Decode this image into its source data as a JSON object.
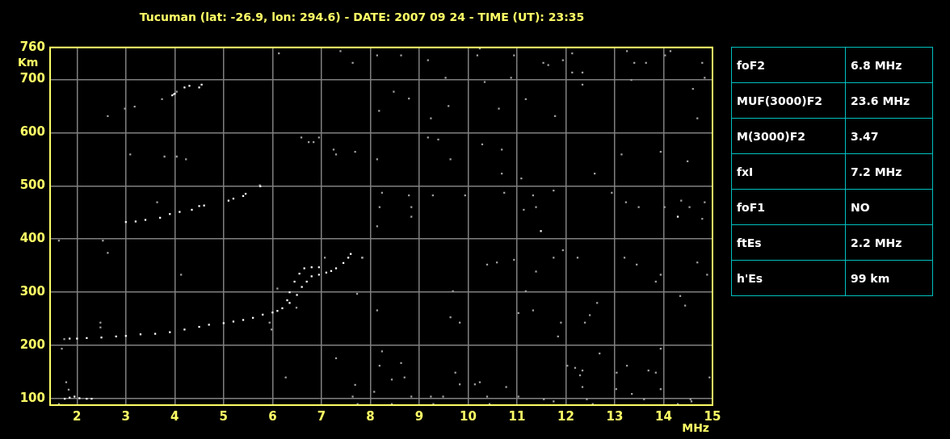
{
  "chart_data": [
    {
      "type": "scatter",
      "title": "Tucuman (lat: -26.9, lon: 294.6) - DATE: 2007 09 24 - TIME (UT): 23:35",
      "xlabel": "MHz",
      "ylabel": "Km",
      "xlim": [
        1.45,
        15
      ],
      "ylim": [
        88,
        760
      ],
      "xticks": [
        2,
        3,
        4,
        5,
        6,
        7,
        8,
        9,
        10,
        11,
        12,
        13,
        14,
        15
      ],
      "yticks": [
        100,
        200,
        300,
        400,
        500,
        600,
        700,
        760
      ],
      "grid": true,
      "legend": false,
      "marker": "square",
      "series": [
        {
          "color": "#ffffff",
          "x": [
            1.75,
            1.85,
            1.95,
            2.05,
            2.2,
            2.3,
            1.85,
            2.0,
            2.2,
            2.5,
            2.8,
            3.0,
            3.3,
            3.6,
            3.9,
            4.2,
            4.5,
            4.7,
            5.0,
            5.2,
            5.4,
            5.6,
            5.8,
            6.0,
            6.2,
            6.35,
            6.5,
            6.6,
            6.7,
            6.8,
            6.95,
            7.1,
            7.2,
            6.1,
            6.3,
            6.35,
            6.45,
            6.55,
            6.65,
            6.8,
            6.95,
            7.3,
            7.45,
            7.55,
            7.6,
            3.0,
            3.2,
            3.4,
            3.7,
            3.9,
            4.1,
            4.35,
            4.5,
            4.6,
            5.1,
            5.2,
            5.4,
            5.45,
            5.75,
            3.95,
            4.0,
            4.2,
            4.3,
            4.5,
            4.55,
            11.49,
            14.29
          ],
          "values": [
            100,
            102,
            104,
            101,
            100,
            100,
            213,
            213,
            214,
            215,
            217,
            218,
            221,
            222,
            225,
            230,
            235,
            239,
            242,
            245,
            248,
            252,
            258,
            262,
            270,
            280,
            295,
            310,
            320,
            330,
            333,
            337,
            340,
            265,
            285,
            300,
            320,
            335,
            345,
            347,
            347,
            345,
            355,
            365,
            372,
            432,
            433,
            436,
            440,
            447,
            451,
            455,
            462,
            463,
            472,
            476,
            481,
            485,
            499,
            670,
            673,
            685,
            688,
            685,
            690,
            415,
            442
          ]
        },
        {
          "color": "#a0a0a0",
          "x": [
            8.14,
            8.63,
            9.18,
            8.48,
            8.18,
            8.79,
            9.6,
            10.34,
            10.63,
            11.18,
            11.78,
            12.34,
            13.34,
            14.6,
            14.69,
            9.18,
            10.29,
            10.69,
            9.64,
            8.14,
            10.69,
            11.09,
            12.59,
            13.14,
            13.94,
            14.49,
            8.24,
            8.79,
            9.28,
            9.94,
            8.19,
            8.84,
            8.84,
            8.14,
            10.74,
            11.33,
            11.39,
            11.14,
            11.75,
            12.94,
            13.23,
            13.49,
            14.02,
            14.36,
            14.53,
            14.79,
            14.84,
            11.94,
            11.75,
            12.24,
            10.94,
            10.59,
            10.39,
            11.39,
            13.2,
            13.45,
            13.84,
            13.94,
            14.69,
            14.89,
            7.83,
            9.69,
            11.18,
            12.64,
            12.49,
            12.39,
            11.9,
            11.84,
            11.03,
            11.33,
            9.64,
            9.83,
            8.14,
            14.34,
            14.44,
            12.69,
            13.94,
            8.24,
            8.63,
            8.19,
            8.44,
            8.7,
            9.74,
            9.83,
            10.24,
            10.14,
            10.78,
            12.03,
            12.19,
            12.34,
            12.29,
            12.34,
            13.04,
            13.25,
            13.69,
            13.84,
            13.94,
            14.94,
            13.03,
            13.35,
            8.08,
            9.24,
            9.49,
            10.39,
            11.03,
            11.55,
            12.43,
            13.6,
            14.55,
            8.84,
            8.44,
            9.29,
            10.44,
            11.75,
            12.55,
            14.29,
            14.57,
            14.14,
            14.03,
            14.79,
            14.84,
            13.4,
            13.64,
            13.25,
            12.34,
            12.13,
            12.13,
            11.54,
            11.64,
            11.94,
            10.94,
            10.19,
            10.24,
            10.88,
            9.54,
            9.24,
            9.39,
            2.63,
            3.18,
            2.98,
            3.74,
            3.98,
            4.04,
            3.09,
            3.79,
            4.04,
            4.23,
            6.13,
            7.39,
            7.64,
            6.59,
            6.74,
            6.84,
            6.95,
            7.25,
            7.3,
            7.69,
            5.74,
            3.64,
            1.63,
            2.53,
            2.63,
            4.13,
            7.84,
            7.73,
            7.07,
            1.69,
            1.74,
            2.48,
            2.48,
            1.78,
            1.83,
            1.63,
            6.27,
            7.3,
            7.69,
            7.64,
            7.74,
            5.98,
            5.94,
            6.1,
            6.49
          ],
          "values": [
            745,
            745,
            736,
            677,
            641,
            664,
            650,
            695,
            645,
            663,
            631,
            690,
            699,
            682,
            627,
            591,
            578,
            568,
            550,
            550,
            523,
            514,
            523,
            559,
            564,
            546,
            487,
            482,
            482,
            482,
            460,
            460,
            442,
            424,
            487,
            482,
            460,
            455,
            491,
            487,
            469,
            460,
            460,
            472,
            460,
            438,
            469,
            379,
            365,
            365,
            361,
            356,
            352,
            339,
            365,
            352,
            320,
            333,
            356,
            333,
            365,
            302,
            302,
            280,
            257,
            243,
            243,
            217,
            261,
            266,
            253,
            243,
            266,
            293,
            275,
            185,
            194,
            189,
            167,
            162,
            136,
            140,
            149,
            127,
            131,
            127,
            122,
            162,
            158,
            153,
            144,
            122,
            149,
            162,
            153,
            149,
            118,
            140,
            118,
            109,
            113,
            104,
            104,
            104,
            104,
            99,
            99,
            99,
            99,
            104,
            90,
            90,
            90,
            95,
            90,
            90,
            95,
            753,
            745,
            731,
            703,
            731,
            731,
            753,
            713,
            713,
            749,
            731,
            727,
            736,
            745,
            745,
            758,
            703,
            703,
            627,
            587,
            631,
            649,
            645,
            663,
            672,
            677,
            559,
            555,
            555,
            550,
            749,
            753,
            731,
            591,
            582,
            582,
            591,
            568,
            559,
            564,
            501,
            469,
            397,
            397,
            374,
            333,
            365,
            297,
            365,
            194,
            212,
            243,
            234,
            131,
            117,
            90,
            140,
            176,
            126,
            104,
            90,
            230,
            243,
            307,
            271
          ]
        }
      ]
    },
    {
      "type": "other",
      "annotations": [
        "foF2",
        "6.8 MHz",
        "MUF(3000)F2",
        "23.6 MHz",
        "M(3000)F2",
        "3.47",
        "fxI",
        "7.2 MHz",
        "foF1",
        "NO",
        "ftEs",
        "2.2 MHz",
        "h'Es",
        "99 km"
      ]
    }
  ]
}
